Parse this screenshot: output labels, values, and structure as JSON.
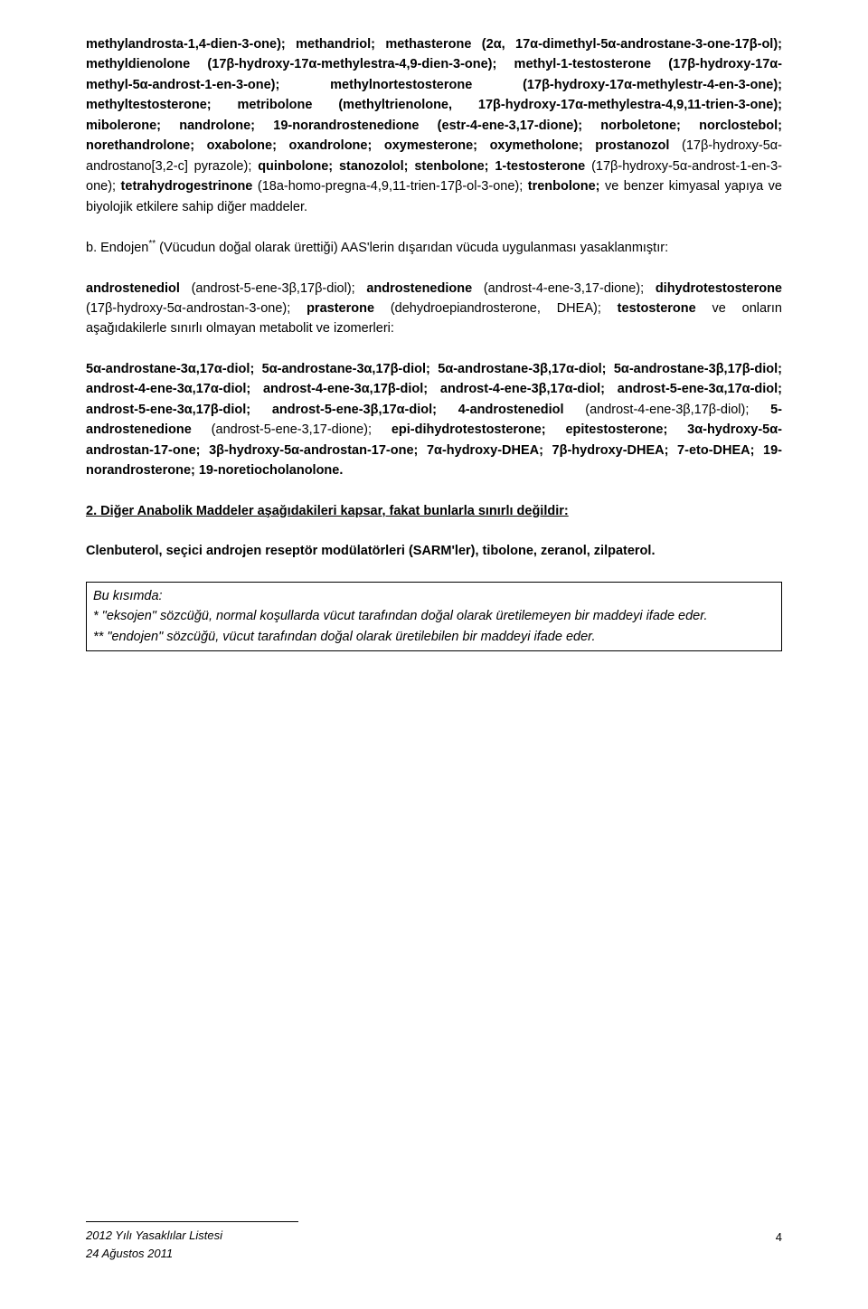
{
  "para1": "methylandrosta-1,4-dien-3-one); methandriol; methasterone (2α, 17α-dimethyl-5α-androstane-3-one-17β-ol); methyldienolone (17β-hydroxy-17α-methylestra-4,9-dien-3-one); methyl-1-testosterone (17β-hydroxy-17α-methyl-5α-androst-1-en-3-one); methylnortestosterone (17β-hydroxy-17α-methylestr-4-en-3-one); methyltestosterone; metribolone (methyltrienolone, 17β-hydroxy-17α-methylestra-4,9,11-trien-3-one); mibolerone; nandrolone; 19-norandrostenedione (estr-4-ene-3,17-dione); norboletone; norclostebol; norethandrolone; oxabolone; oxandrolone; oxymesterone; oxymetholone; prostanozol ",
  "para1_plain1": "(17β-hydroxy-5α-androstano[3,2-c] pyrazole); ",
  "para1_bold2": "quinbolone; stanozolol; stenbolone; 1-testosterone ",
  "para1_plain2": "(17β-hydroxy-5α-androst-1-en-3-one); ",
  "para1_bold3": "tetrahydrogestrinone ",
  "para1_plain3": "(18a-homo-pregna-4,9,11-trien-17β-ol-3-one); ",
  "para1_bold4": "trenbolone; ",
  "para1_tail": "ve benzer kimyasal yapıya ve biyolojik etkilere sahip diğer maddeler.",
  "para_b_lead": "b. Endojen",
  "para_b_sup": "**",
  "para_b_rest": " (Vücudun doğal olarak ürettiği) AAS'lerin dışarıdan vücuda uygulanması yasaklanmıştır:",
  "para2_b1": "androstenediol ",
  "para2_p1": "(androst-5-ene-3β,17β-diol); ",
  "para2_b2": "androstenedione ",
  "para2_p2": "(androst-4-ene-3,17-dione); ",
  "para2_b3": "dihydrotestosterone ",
  "para2_p3": "(17β-hydroxy-5α-androstan-3-one); ",
  "para2_b4": "prasterone ",
  "para2_p4": "(dehydroepiandrosterone, DHEA); ",
  "para2_b5": "testosterone ",
  "para2_tail": "ve onların aşağıdakilerle sınırlı olmayan metabolit ve izomerleri:",
  "para3_b1": "5α-androstane-3α,17α-diol; 5α-androstane-3α,17β-diol; 5α-androstane-3β,17α-diol; 5α-androstane-3β,17β-diol; androst-4-ene-3α,17α-diol; androst-4-ene-3α,17β-diol; androst-4-ene-3β,17α-diol; androst-5-ene-3α,17α-diol; androst-5-ene-3α,17β-diol; androst-5-ene-3β,17α-diol; 4-androstenediol ",
  "para3_p1": "(androst-4-ene-3β,17β-diol); ",
  "para3_b2": "5-androstenedione ",
  "para3_p2": "(androst-5-ene-3,17-dione); ",
  "para3_b3": "epi-dihydrotestosterone; epitestosterone; 3α-hydroxy-5α-androstan-17-one; 3β-hydroxy-5α-androstan-17-one; 7α-hydroxy-DHEA; 7β-hydroxy-DHEA; 7-eto-DHEA; 19-norandrosterone; 19-noretiocholanolone.",
  "heading2": "2. Diğer Anabolik Maddeler aşağıdakileri kapsar, fakat bunlarla sınırlı değildir:",
  "clen": "Clenbuterol, seçici androjen reseptör modülatörleri (SARM'ler), tibolone, zeranol, zilpaterol.",
  "box_l1_lead": "Bu kısımda:",
  "box_l2": "* \"eksojen\" sözcüğü, normal koşullarda vücut tarafından doğal olarak üretilemeyen bir maddeyi ifade eder.",
  "box_l3": "** \"endojen\" sözcüğü, vücut tarafından doğal olarak üretilebilen bir maddeyi ifade eder.",
  "footer_l1": "2012 Yılı Yasaklılar Listesi",
  "footer_l2": "24 Ağustos 2011",
  "page_num": "4"
}
